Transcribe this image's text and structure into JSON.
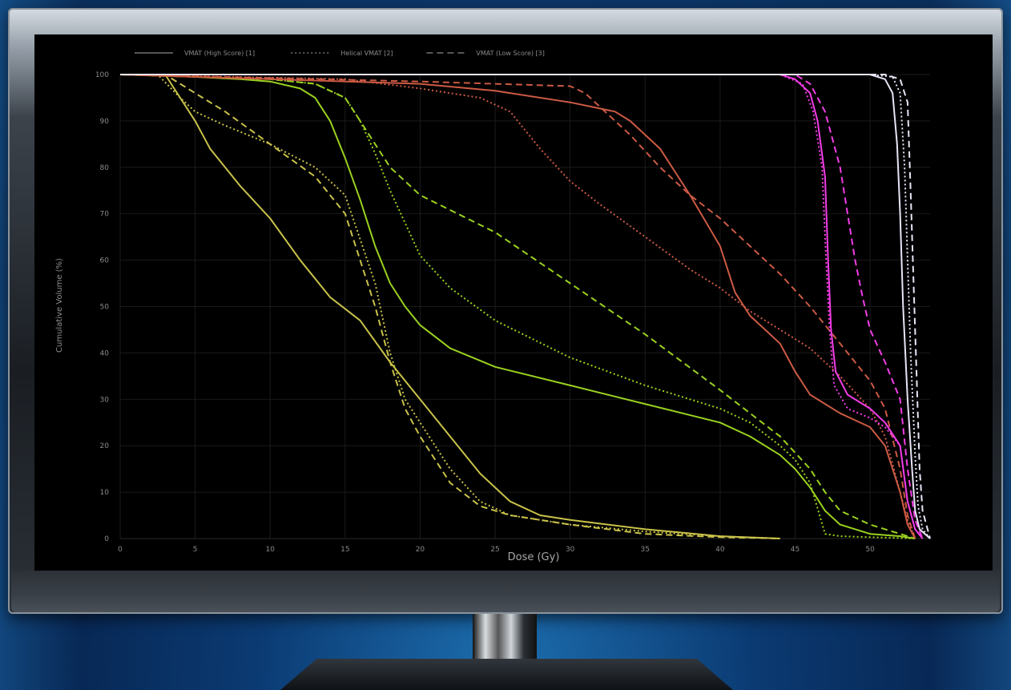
{
  "chart_data": {
    "type": "line",
    "title": "",
    "xlabel": "Dose (Gy)",
    "ylabel": "Cumulative Volume (%)",
    "xlim": [
      0,
      54
    ],
    "ylim": [
      0,
      100
    ],
    "xticks": [
      "0",
      "5",
      "10",
      "15",
      "20",
      "25",
      "30",
      "35",
      "40",
      "45",
      "50"
    ],
    "yticks": [
      "0",
      "10",
      "20",
      "30",
      "40",
      "50",
      "60",
      "70",
      "80",
      "90",
      "100"
    ],
    "grid": true,
    "legend_position": "top-left",
    "legend": [
      {
        "label": "VMAT (High Score) [1]",
        "dash": "solid"
      },
      {
        "label": "Helical VMAT [2]",
        "dash": "dotted"
      },
      {
        "label": "VMAT (Low Score) [3]",
        "dash": "dashed"
      }
    ],
    "series": [
      {
        "plan": "VMAT (High Score) [1]",
        "color": "#c9c24a",
        "style": "solid",
        "points": [
          [
            0,
            100
          ],
          [
            3,
            100
          ],
          [
            4,
            95
          ],
          [
            5,
            90
          ],
          [
            6,
            84
          ],
          [
            8,
            76
          ],
          [
            10,
            69
          ],
          [
            12,
            60
          ],
          [
            14,
            52
          ],
          [
            16,
            47
          ],
          [
            18,
            38
          ],
          [
            20,
            30
          ],
          [
            22,
            22
          ],
          [
            24,
            14
          ],
          [
            26,
            8
          ],
          [
            28,
            5
          ],
          [
            30,
            4
          ],
          [
            35,
            2
          ],
          [
            40,
            0.5
          ],
          [
            44,
            0
          ]
        ]
      },
      {
        "plan": "Helical VMAT [2]",
        "color": "#c9c24a",
        "style": "dotted",
        "points": [
          [
            0,
            100
          ],
          [
            2.5,
            100
          ],
          [
            4,
            95
          ],
          [
            5,
            92
          ],
          [
            7,
            89
          ],
          [
            10,
            85
          ],
          [
            13,
            80
          ],
          [
            15,
            74
          ],
          [
            17,
            55
          ],
          [
            18,
            40
          ],
          [
            19,
            30
          ],
          [
            20,
            25
          ],
          [
            22,
            15
          ],
          [
            24,
            8
          ],
          [
            26,
            5
          ],
          [
            28,
            4
          ],
          [
            30,
            3
          ],
          [
            35,
            1.5
          ],
          [
            40,
            0.5
          ],
          [
            44,
            0
          ]
        ]
      },
      {
        "plan": "VMAT (Low Score) [3]",
        "color": "#c9c24a",
        "style": "dashed",
        "points": [
          [
            0,
            100
          ],
          [
            3,
            100
          ],
          [
            4,
            98
          ],
          [
            5,
            96
          ],
          [
            7,
            92
          ],
          [
            10,
            85
          ],
          [
            13,
            78
          ],
          [
            15,
            70
          ],
          [
            17,
            50
          ],
          [
            18,
            38
          ],
          [
            19,
            28
          ],
          [
            20,
            22
          ],
          [
            22,
            12
          ],
          [
            24,
            7
          ],
          [
            26,
            5
          ],
          [
            30,
            3
          ],
          [
            35,
            1
          ],
          [
            40,
            0.3
          ],
          [
            44,
            0
          ]
        ]
      },
      {
        "plan": "VMAT (High Score) [1]",
        "color": "#9ad11f",
        "style": "solid",
        "points": [
          [
            0,
            100
          ],
          [
            5,
            99.5
          ],
          [
            8,
            99
          ],
          [
            10,
            98.5
          ],
          [
            12,
            97
          ],
          [
            13,
            95
          ],
          [
            14,
            90
          ],
          [
            15,
            82
          ],
          [
            16,
            73
          ],
          [
            17,
            63
          ],
          [
            18,
            55
          ],
          [
            19,
            50
          ],
          [
            20,
            46
          ],
          [
            22,
            41
          ],
          [
            25,
            37
          ],
          [
            30,
            33
          ],
          [
            35,
            29
          ],
          [
            40,
            25
          ],
          [
            42,
            22
          ],
          [
            44,
            18
          ],
          [
            45,
            15
          ],
          [
            46,
            11
          ],
          [
            47,
            6
          ],
          [
            48,
            3
          ],
          [
            50,
            1
          ],
          [
            52,
            0.5
          ],
          [
            53,
            0
          ]
        ]
      },
      {
        "plan": "Helical VMAT [2]",
        "color": "#9ad11f",
        "style": "dotted",
        "points": [
          [
            0,
            100
          ],
          [
            5,
            99.5
          ],
          [
            10,
            99
          ],
          [
            13,
            98
          ],
          [
            15,
            95
          ],
          [
            16,
            90
          ],
          [
            17,
            83
          ],
          [
            18,
            75
          ],
          [
            19,
            68
          ],
          [
            20,
            61
          ],
          [
            22,
            54
          ],
          [
            25,
            47
          ],
          [
            30,
            39
          ],
          [
            35,
            33
          ],
          [
            40,
            28
          ],
          [
            42,
            25
          ],
          [
            44,
            20
          ],
          [
            45,
            17
          ],
          [
            46,
            12
          ],
          [
            47,
            1
          ],
          [
            48,
            0.5
          ],
          [
            50,
            0.3
          ],
          [
            53,
            0
          ]
        ]
      },
      {
        "plan": "VMAT (Low Score) [3]",
        "color": "#9ad11f",
        "style": "dashed",
        "points": [
          [
            0,
            100
          ],
          [
            5,
            99.5
          ],
          [
            10,
            99
          ],
          [
            13,
            98
          ],
          [
            15,
            95
          ],
          [
            16,
            90
          ],
          [
            17,
            85
          ],
          [
            18,
            80
          ],
          [
            20,
            74
          ],
          [
            25,
            66
          ],
          [
            30,
            55
          ],
          [
            35,
            44
          ],
          [
            40,
            32
          ],
          [
            42,
            27
          ],
          [
            44,
            22
          ],
          [
            46,
            15
          ],
          [
            47,
            10
          ],
          [
            48,
            6
          ],
          [
            50,
            3
          ],
          [
            52,
            1
          ],
          [
            53,
            0
          ]
        ]
      },
      {
        "plan": "VMAT (High Score) [1]",
        "color": "#cc5a44",
        "style": "solid",
        "points": [
          [
            0,
            100
          ],
          [
            10,
            99
          ],
          [
            20,
            98
          ],
          [
            25,
            96.5
          ],
          [
            30,
            94
          ],
          [
            33,
            92
          ],
          [
            34,
            90
          ],
          [
            36,
            84
          ],
          [
            38,
            74
          ],
          [
            40,
            63
          ],
          [
            41,
            53
          ],
          [
            42,
            48
          ],
          [
            43,
            45
          ],
          [
            44,
            42
          ],
          [
            45,
            36
          ],
          [
            46,
            31
          ],
          [
            48,
            27
          ],
          [
            50,
            24
          ],
          [
            51,
            20
          ],
          [
            52,
            10
          ],
          [
            52.5,
            3
          ],
          [
            53,
            0
          ]
        ]
      },
      {
        "plan": "Helical VMAT [2]",
        "color": "#cc5a44",
        "style": "dotted",
        "points": [
          [
            0,
            100
          ],
          [
            15,
            99
          ],
          [
            20,
            97
          ],
          [
            24,
            95
          ],
          [
            26,
            92
          ],
          [
            28,
            84
          ],
          [
            30,
            77
          ],
          [
            32,
            72
          ],
          [
            35,
            65
          ],
          [
            38,
            58
          ],
          [
            40,
            54
          ],
          [
            42,
            49
          ],
          [
            44,
            45
          ],
          [
            46,
            41
          ],
          [
            48,
            35
          ],
          [
            50,
            28
          ],
          [
            51,
            22
          ],
          [
            52,
            10
          ],
          [
            52.5,
            4
          ],
          [
            53,
            0
          ]
        ]
      },
      {
        "plan": "VMAT (Low Score) [3]",
        "color": "#cc5a44",
        "style": "dashed",
        "points": [
          [
            0,
            100
          ],
          [
            20,
            98.5
          ],
          [
            25,
            98
          ],
          [
            30,
            97.5
          ],
          [
            31,
            96
          ],
          [
            32,
            93
          ],
          [
            34,
            87
          ],
          [
            36,
            80
          ],
          [
            38,
            74
          ],
          [
            40,
            69
          ],
          [
            42,
            63
          ],
          [
            44,
            57
          ],
          [
            46,
            50
          ],
          [
            48,
            42
          ],
          [
            50,
            34
          ],
          [
            51,
            28
          ],
          [
            52,
            15
          ],
          [
            52.5,
            5
          ],
          [
            53,
            0
          ]
        ]
      },
      {
        "plan": "VMAT (High Score) [1]",
        "color": "#f23de6",
        "style": "solid",
        "points": [
          [
            0,
            100
          ],
          [
            44,
            100
          ],
          [
            45,
            99
          ],
          [
            46,
            96
          ],
          [
            46.5,
            90
          ],
          [
            47,
            78
          ],
          [
            47.2,
            60
          ],
          [
            47.4,
            45
          ],
          [
            47.7,
            36
          ],
          [
            48.5,
            31
          ],
          [
            50,
            28
          ],
          [
            51,
            25
          ],
          [
            52,
            20
          ],
          [
            52.5,
            8
          ],
          [
            53,
            2
          ],
          [
            53.5,
            0
          ]
        ]
      },
      {
        "plan": "Helical VMAT [2]",
        "color": "#f23de6",
        "style": "dotted",
        "points": [
          [
            0,
            100
          ],
          [
            44,
            100
          ],
          [
            45.5,
            98
          ],
          [
            46.2,
            92
          ],
          [
            46.8,
            80
          ],
          [
            47,
            65
          ],
          [
            47.3,
            45
          ],
          [
            47.6,
            33
          ],
          [
            48.5,
            28
          ],
          [
            50,
            26
          ],
          [
            51,
            24
          ],
          [
            52,
            20
          ],
          [
            52.5,
            8
          ],
          [
            53,
            2
          ],
          [
            53.5,
            0
          ]
        ]
      },
      {
        "plan": "VMAT (Low Score) [3]",
        "color": "#f23de6",
        "style": "dashed",
        "points": [
          [
            0,
            100
          ],
          [
            45,
            100
          ],
          [
            46,
            98
          ],
          [
            47,
            92
          ],
          [
            48,
            80
          ],
          [
            48.5,
            70
          ],
          [
            49,
            60
          ],
          [
            49.5,
            52
          ],
          [
            50,
            45
          ],
          [
            51,
            38
          ],
          [
            52,
            30
          ],
          [
            52.5,
            15
          ],
          [
            53,
            4
          ],
          [
            53.5,
            0
          ]
        ]
      },
      {
        "plan": "VMAT (High Score) [1]",
        "color": "#e8e4f6",
        "style": "solid",
        "points": [
          [
            0,
            100
          ],
          [
            50,
            100
          ],
          [
            51,
            99
          ],
          [
            51.5,
            96
          ],
          [
            51.8,
            85
          ],
          [
            52,
            70
          ],
          [
            52.2,
            50
          ],
          [
            52.5,
            30
          ],
          [
            52.8,
            15
          ],
          [
            53,
            6
          ],
          [
            53.3,
            2
          ],
          [
            54,
            0
          ]
        ]
      },
      {
        "plan": "Helical VMAT [2]",
        "color": "#e8e4f6",
        "style": "dotted",
        "points": [
          [
            0,
            100
          ],
          [
            50,
            100
          ],
          [
            51.5,
            99.5
          ],
          [
            52,
            96
          ],
          [
            52.3,
            80
          ],
          [
            52.5,
            60
          ],
          [
            52.7,
            40
          ],
          [
            53,
            18
          ],
          [
            53.2,
            7
          ],
          [
            53.5,
            2
          ],
          [
            54,
            0
          ]
        ]
      },
      {
        "plan": "VMAT (Low Score) [3]",
        "color": "#e8e4f6",
        "style": "dashed",
        "points": [
          [
            0,
            100
          ],
          [
            51,
            100
          ],
          [
            52,
            99
          ],
          [
            52.5,
            94
          ],
          [
            52.7,
            75
          ],
          [
            52.9,
            55
          ],
          [
            53.1,
            35
          ],
          [
            53.3,
            15
          ],
          [
            53.5,
            6
          ],
          [
            54,
            0
          ]
        ]
      }
    ]
  }
}
